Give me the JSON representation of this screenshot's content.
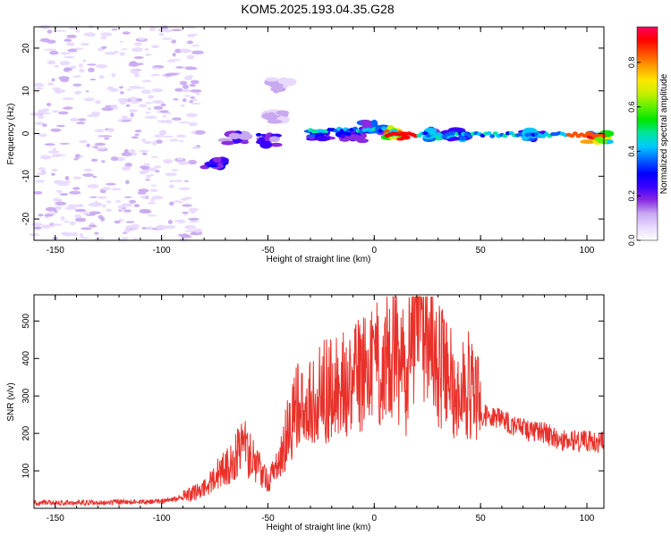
{
  "title": "KOM5.2025.193.04.35.G28",
  "colors": {
    "snr_line": "#e8312a",
    "blob_faint": "#c8a8f0",
    "axis": "#000000"
  },
  "chart_data": [
    {
      "type": "heatmap",
      "xlabel": "Height of straight line (km)",
      "ylabel": "Frequency (Hz)",
      "xlim": [
        -160,
        108
      ],
      "ylim": [
        -25,
        25
      ],
      "xticks": [
        -150,
        -100,
        -50,
        0,
        50,
        100
      ],
      "yticks": [
        -20,
        -10,
        0,
        10,
        20
      ],
      "colorbar": {
        "label": "Normalized spectral amplitude",
        "range": [
          0,
          0.96
        ],
        "ticks": [
          "0.0",
          "0.2",
          "0.4",
          "0.6",
          "0.8"
        ],
        "tick_values": [
          0,
          0.2,
          0.4,
          0.6,
          0.8
        ],
        "colormap": [
          "#ffffff",
          "#e8d8ff",
          "#c8a8f0",
          "#8a2be2",
          "#3a00ff",
          "#0000ff",
          "#0060ff",
          "#00c8ff",
          "#00e6a0",
          "#00e600",
          "#60f000",
          "#c8f000",
          "#ffe600",
          "#ffa000",
          "#ff5000",
          "#ff0000",
          "#ff0060"
        ]
      },
      "features": [
        {
          "x": -75,
          "y": -7,
          "amp": 0.35
        },
        {
          "x": -65,
          "y": -1,
          "amp": 0.25
        },
        {
          "x": -50,
          "y": -1.5,
          "amp": 0.3
        },
        {
          "x": -45,
          "y": 4,
          "amp": 0.15
        },
        {
          "x": -44,
          "y": 11.5,
          "amp": 0.15
        },
        {
          "x": -25,
          "y": -0.5,
          "amp": 0.35
        },
        {
          "x": -10,
          "y": -0.5,
          "amp": 0.3
        },
        {
          "x": 0,
          "y": 1.5,
          "amp": 0.4
        },
        {
          "x": 10,
          "y": 0,
          "amp": 0.95
        },
        {
          "x": 30,
          "y": -0.3,
          "amp": 0.5
        },
        {
          "x": 40,
          "y": -0.3,
          "amp": 0.4
        },
        {
          "x": 75,
          "y": -0.5,
          "amp": 0.45
        },
        {
          "x": 105,
          "y": -0.7,
          "amp": 0.9
        }
      ]
    },
    {
      "type": "line",
      "xlabel": "Height of straight line (km)",
      "ylabel": "SNR (v/v)",
      "xlim": [
        -160,
        108
      ],
      "ylim": [
        0,
        570
      ],
      "xticks": [
        -150,
        -100,
        -50,
        0,
        50,
        100
      ],
      "yticks": [
        100,
        200,
        300,
        400,
        500
      ],
      "envelope": {
        "x": [
          -160,
          -130,
          -100,
          -90,
          -80,
          -70,
          -60,
          -55,
          -50,
          -45,
          -40,
          -35,
          -30,
          -20,
          -10,
          0,
          10,
          15,
          20,
          25,
          30,
          40,
          47,
          50,
          60,
          70,
          80,
          90,
          100,
          108
        ],
        "y": [
          15,
          15,
          18,
          30,
          45,
          100,
          150,
          120,
          70,
          110,
          220,
          280,
          300,
          320,
          350,
          380,
          420,
          350,
          500,
          470,
          390,
          300,
          350,
          250,
          240,
          210,
          200,
          180,
          180,
          175
        ]
      }
    }
  ]
}
